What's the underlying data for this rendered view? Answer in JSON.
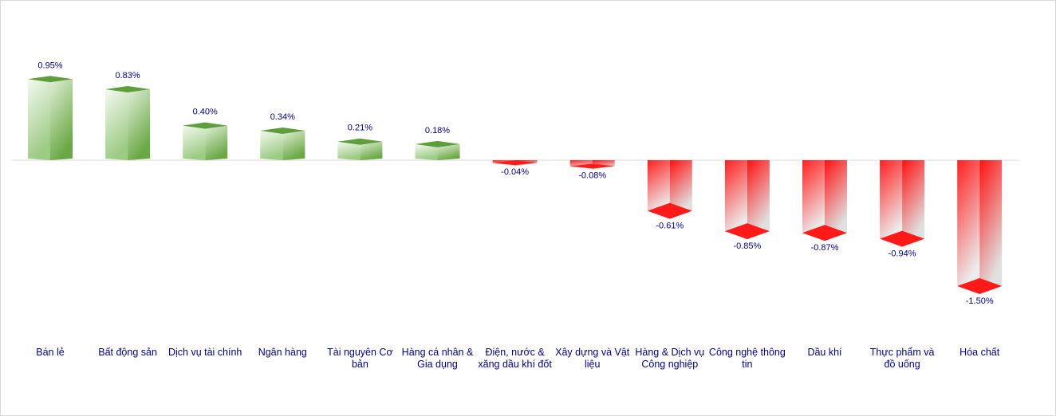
{
  "chart_data": {
    "type": "bar",
    "categories": [
      "Bán lẻ",
      "Bất động sản",
      "Dịch vụ tài chính",
      "Ngân hàng",
      "Tài nguyên Cơ bản",
      "Hàng cá nhân & Gia dụng",
      "Điện, nước & xăng dầu khí đốt",
      "Xây dựng và Vật liệu",
      "Hàng & Dịch vụ Công nghiệp",
      "Công nghệ thông tin",
      "Dầu khí",
      "Thực phẩm và đồ uống",
      "Hóa chất"
    ],
    "values": [
      0.95,
      0.83,
      0.4,
      0.34,
      0.21,
      0.18,
      -0.04,
      -0.08,
      -0.61,
      -0.85,
      -0.87,
      -0.94,
      -1.5
    ],
    "data_labels": [
      "0.95%",
      "0.83%",
      "0.40%",
      "0.34%",
      "0.21%",
      "0.18%",
      "-0.04%",
      "-0.08%",
      "-0.61%",
      "-0.85%",
      "-0.87%",
      "-0.94%",
      "-1.50%"
    ],
    "unit": "%",
    "ylim": [
      -1.5,
      0.95
    ],
    "grid": false,
    "legend": "none",
    "style": "3d-column",
    "colors": {
      "positive": "#70ad47",
      "negative": "#ff0000",
      "label": "#000080"
    }
  }
}
